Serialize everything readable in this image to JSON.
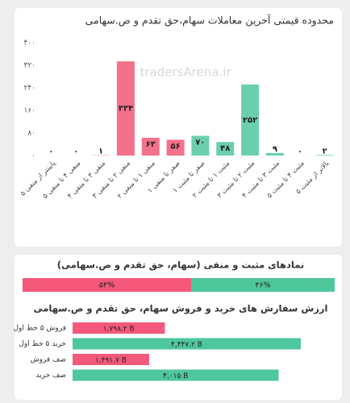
{
  "chart_data": [
    {
      "type": "bar",
      "title": "محدوده قیمتی آخرین معاملات سهام،حق تقدم و ص.سهامی",
      "watermark": "tradersArena.ir",
      "categories": [
        "پایینتر از منفی ۵",
        "منفی ۴ تا منفی ۵",
        "منفی ۳ تا منفی ۴",
        "منفی ۲ تا منفی ۳",
        "منفی ۱ تا منفی ۲",
        "صفر تا منفی ۱",
        "صفر تا مثبت ۱",
        "مثبت ۱ تا مثبت ۲",
        "مثبت ۲ تا مثبت ۳",
        "مثبت ۳ تا مثبت ۴",
        "مثبت ۴ تا مثبت ۵",
        "بالاتر از مثبت ۵"
      ],
      "values": [
        0,
        0,
        1,
        334,
        63,
        56,
        70,
        48,
        252,
        9,
        0,
        2
      ],
      "value_labels": [
        "۰",
        "۰",
        "۱",
        "۳۳۴",
        "۶۳",
        "۵۶",
        "۷۰",
        "۴۸",
        "۲۵۲",
        "۹",
        "۰",
        "۲"
      ],
      "colors": [
        "#f4718c",
        "#f4718c",
        "#f4718c",
        "#f4718c",
        "#f4718c",
        "#f4718c",
        "#6bcfae",
        "#6bcfae",
        "#6bcfae",
        "#6bcfae",
        "#6bcfae",
        "#6bcfae"
      ],
      "ylim": [
        0,
        400
      ],
      "yticks": [
        {
          "value": 0,
          "label": "۰"
        },
        {
          "value": 80,
          "label": "۸۰"
        },
        {
          "value": 160,
          "label": "۱۶۰"
        },
        {
          "value": 240,
          "label": "۲۴۰"
        },
        {
          "value": 320,
          "label": "۳۲۰"
        },
        {
          "value": 400,
          "label": "۴۰۰"
        }
      ],
      "grid": false
    },
    {
      "type": "stacked_bar",
      "title": "نمادهای مثبت و منفی (سهام، حق تقدم و ص.سهامی)",
      "values": [
        54,
        46
      ],
      "value_labels": [
        "۵۴%",
        "۴۶%"
      ],
      "colors": [
        "#f4587a",
        "#4fc79c"
      ]
    },
    {
      "type": "hbar",
      "title": "ارزش سفارش های خرید و فروش سهام، حق تقدم و ص.سهامی",
      "categories": [
        "فروش ۵ خط اول",
        "خرید ۵ خط اول",
        "صف فروش",
        "صف خرید"
      ],
      "values": [
        1798.2,
        4447.2,
        1491.7,
        4015
      ],
      "value_labels": [
        "۱,۷۹۸.۲ B",
        "۴,۴۴۷.۲ B",
        "۱,۴۹۱.۷ B",
        "۴,۰۱۵ B"
      ],
      "colors": [
        "#f4587a",
        "#4fc79c",
        "#f4587a",
        "#4fc79c"
      ]
    }
  ]
}
